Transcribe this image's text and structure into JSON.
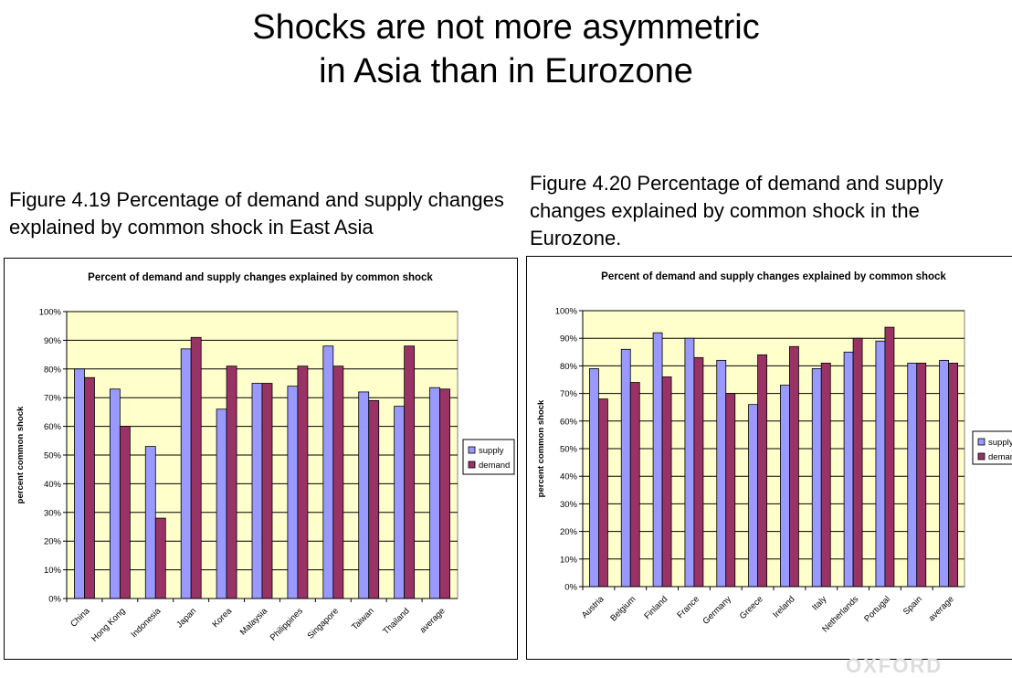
{
  "slide": {
    "title_line1": "Shocks are not more asymmetric",
    "title_line2": "in Asia than in Eurozone"
  },
  "figures": [
    {
      "caption": "Figure 4.19 Percentage of demand and supply changes explained by common shock in East Asia"
    },
    {
      "caption": "Figure 4.20 Percentage of demand and supply changes explained by common shock in the Eurozone."
    }
  ],
  "colors": {
    "supply": "#9999ff",
    "demand": "#993366",
    "plot_background": "#ffffcc",
    "gridline": "#000000"
  },
  "chart_data": [
    {
      "type": "bar",
      "title": "Percent of demand and supply changes explained by common shock",
      "ylabel": "percent common shock",
      "xlabel": "",
      "ylim": [
        0,
        100
      ],
      "yticks": [
        "0%",
        "10%",
        "20%",
        "30%",
        "40%",
        "50%",
        "60%",
        "70%",
        "80%",
        "90%",
        "100%"
      ],
      "grid": true,
      "legend_position": "right",
      "categories": [
        "China",
        "Hong Kong",
        "Indonesia",
        "Japan",
        "Korea",
        "Malaysia",
        "Philippines",
        "Singapore",
        "Taiwan",
        "Thailand",
        "average"
      ],
      "series": [
        {
          "name": "supply",
          "values": [
            80,
            73,
            53,
            87,
            66,
            75,
            74,
            88,
            72,
            67,
            73.5
          ]
        },
        {
          "name": "demand",
          "values": [
            77,
            60,
            28,
            91,
            81,
            75,
            81,
            81,
            69,
            88,
            73
          ]
        }
      ]
    },
    {
      "type": "bar",
      "title": "Percent of demand and supply changes explained by common shock",
      "ylabel": "percent common shock",
      "xlabel": "",
      "ylim": [
        0,
        100
      ],
      "yticks": [
        "0%",
        "10%",
        "20%",
        "30%",
        "40%",
        "50%",
        "60%",
        "70%",
        "80%",
        "90%",
        "100%"
      ],
      "grid": true,
      "legend_position": "right",
      "categories": [
        "Austria",
        "Belgium",
        "Finland",
        "France",
        "Germany",
        "Greece",
        "Ireland",
        "Italy",
        "Netherlands",
        "Portugal",
        "Spain",
        "average"
      ],
      "series": [
        {
          "name": "supply",
          "values": [
            79,
            86,
            92,
            90,
            82,
            66,
            73,
            79,
            85,
            89,
            81,
            82
          ]
        },
        {
          "name": "demand",
          "values": [
            68,
            74,
            76,
            83,
            70,
            84,
            87,
            81,
            90,
            94,
            81,
            81
          ]
        }
      ]
    }
  ]
}
